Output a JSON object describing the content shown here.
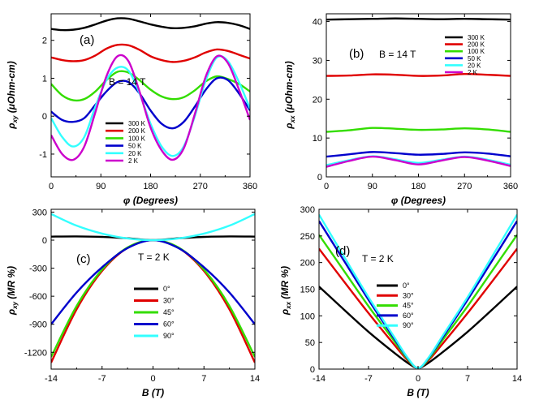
{
  "chart_data": [
    {
      "type": "line",
      "panel": "(a)",
      "field_label": "B = 14 T",
      "xlabel": "φ (Degrees)",
      "ylabel": "ρxy (μOhm-cm)",
      "xlim": [
        0,
        360
      ],
      "ylim": [
        -1.6,
        2.7
      ],
      "xticks": [
        0,
        90,
        180,
        270,
        360
      ],
      "yticks": [
        -1,
        0,
        1,
        2
      ],
      "legend_position": "lower-right",
      "series": [
        {
          "name": "300 K",
          "color": "#000000",
          "x": [
            0,
            20,
            40,
            60,
            80,
            100,
            120,
            140,
            160,
            180,
            200,
            220,
            240,
            260,
            280,
            300,
            320,
            340,
            360
          ],
          "values": [
            2.3,
            2.27,
            2.28,
            2.33,
            2.42,
            2.52,
            2.58,
            2.57,
            2.5,
            2.42,
            2.36,
            2.32,
            2.33,
            2.37,
            2.44,
            2.48,
            2.46,
            2.4,
            2.3
          ]
        },
        {
          "name": "200 K",
          "color": "#e00000",
          "x": [
            0,
            20,
            40,
            60,
            80,
            100,
            120,
            140,
            160,
            180,
            200,
            220,
            240,
            260,
            280,
            300,
            320,
            340,
            360
          ],
          "values": [
            1.55,
            1.48,
            1.45,
            1.48,
            1.6,
            1.78,
            1.88,
            1.87,
            1.75,
            1.58,
            1.48,
            1.43,
            1.46,
            1.55,
            1.68,
            1.76,
            1.72,
            1.62,
            1.52
          ]
        },
        {
          "name": "100 K",
          "color": "#33dd00",
          "x": [
            0,
            20,
            40,
            60,
            80,
            100,
            120,
            140,
            160,
            180,
            200,
            220,
            240,
            260,
            280,
            300,
            320,
            340,
            360
          ],
          "values": [
            0.85,
            0.55,
            0.42,
            0.45,
            0.65,
            0.95,
            1.17,
            1.15,
            0.95,
            0.7,
            0.52,
            0.45,
            0.5,
            0.68,
            0.92,
            1.05,
            0.98,
            0.85,
            0.65
          ]
        },
        {
          "name": "50 K",
          "color": "#0000cc",
          "x": [
            0,
            20,
            40,
            60,
            80,
            100,
            120,
            140,
            160,
            180,
            200,
            220,
            240,
            260,
            280,
            300,
            320,
            340,
            360
          ],
          "values": [
            0.12,
            -0.1,
            -0.15,
            -0.05,
            0.3,
            0.65,
            0.9,
            0.9,
            0.6,
            0.15,
            -0.2,
            -0.32,
            -0.15,
            0.25,
            0.7,
            1.0,
            0.95,
            0.6,
            0.15
          ]
        },
        {
          "name": "20 K",
          "color": "#33ffff",
          "x": [
            0,
            20,
            40,
            60,
            80,
            100,
            120,
            140,
            160,
            180,
            200,
            220,
            240,
            260,
            280,
            300,
            320,
            340,
            360
          ],
          "values": [
            -0.05,
            -0.55,
            -0.8,
            -0.55,
            0.25,
            0.95,
            1.28,
            1.2,
            0.6,
            -0.2,
            -0.8,
            -1.05,
            -0.8,
            0.0,
            0.95,
            1.55,
            1.45,
            0.9,
            0.2
          ]
        },
        {
          "name": "2 K",
          "color": "#cc00cc",
          "x": [
            0,
            20,
            40,
            60,
            80,
            100,
            120,
            140,
            160,
            180,
            200,
            220,
            240,
            260,
            280,
            300,
            320,
            340,
            360
          ],
          "values": [
            -0.5,
            -1.0,
            -1.15,
            -0.8,
            0.1,
            1.05,
            1.58,
            1.45,
            0.65,
            -0.3,
            -0.9,
            -1.15,
            -0.85,
            0.05,
            1.05,
            1.58,
            1.4,
            0.7,
            -0.1
          ]
        }
      ]
    },
    {
      "type": "line",
      "panel": "(b)",
      "field_label": "B = 14 T",
      "xlabel": "φ (Degrees)",
      "ylabel": "ρxx (μOhm-cm)",
      "xlim": [
        0,
        360
      ],
      "ylim": [
        0,
        42
      ],
      "xticks": [
        0,
        90,
        180,
        270,
        360
      ],
      "yticks": [
        0,
        10,
        20,
        30,
        40
      ],
      "legend_position": "top-right",
      "series": [
        {
          "name": "300 K",
          "color": "#000000",
          "x": [
            0,
            45,
            90,
            135,
            180,
            225,
            270,
            315,
            360
          ],
          "values": [
            40.5,
            40.6,
            40.7,
            40.8,
            40.7,
            40.6,
            40.7,
            40.6,
            40.5
          ]
        },
        {
          "name": "200 K",
          "color": "#e00000",
          "x": [
            0,
            45,
            90,
            135,
            180,
            225,
            270,
            315,
            360
          ],
          "values": [
            26.0,
            26.1,
            26.4,
            26.3,
            26.0,
            26.1,
            26.5,
            26.3,
            26.0
          ]
        },
        {
          "name": "100 K",
          "color": "#33dd00",
          "x": [
            0,
            45,
            90,
            135,
            180,
            225,
            270,
            315,
            360
          ],
          "values": [
            11.6,
            12.0,
            12.6,
            12.4,
            12.1,
            12.2,
            12.5,
            12.2,
            11.6
          ]
        },
        {
          "name": "50 K",
          "color": "#0000cc",
          "x": [
            0,
            45,
            90,
            135,
            180,
            225,
            270,
            315,
            360
          ],
          "values": [
            5.2,
            5.8,
            6.4,
            6.1,
            5.7,
            5.9,
            6.3,
            6.0,
            5.3
          ]
        },
        {
          "name": "20 K",
          "color": "#33ffff",
          "x": [
            0,
            45,
            90,
            135,
            180,
            225,
            270,
            315,
            360
          ],
          "values": [
            3.0,
            4.3,
            5.3,
            4.5,
            3.6,
            4.4,
            5.2,
            4.4,
            3.1
          ]
        },
        {
          "name": "2 K",
          "color": "#cc00cc",
          "x": [
            0,
            45,
            90,
            135,
            180,
            225,
            270,
            315,
            360
          ],
          "values": [
            2.6,
            4.1,
            5.2,
            4.3,
            3.2,
            4.2,
            5.1,
            4.2,
            2.8
          ]
        }
      ]
    },
    {
      "type": "line",
      "panel": "(c)",
      "field_label": "T = 2 K",
      "xlabel": "B (T)",
      "ylabel": "ρxy (MR %)",
      "xlim": [
        -14,
        14
      ],
      "ylim": [
        -1380,
        330
      ],
      "xticks": [
        -14,
        -7,
        0,
        7,
        14
      ],
      "yticks": [
        300,
        0,
        -300,
        -600,
        -900,
        -1200
      ],
      "legend_position": "center",
      "series": [
        {
          "name": "0°",
          "color": "#000000",
          "x": [
            -14,
            -10.5,
            -7,
            -3.5,
            0,
            3.5,
            7,
            10.5,
            14
          ],
          "values": [
            38,
            40,
            35,
            20,
            0,
            20,
            35,
            40,
            38
          ]
        },
        {
          "name": "30°",
          "color": "#e00000",
          "x": [
            -14,
            -10.5,
            -7,
            -3.5,
            0,
            3.5,
            7,
            10.5,
            14
          ],
          "values": [
            -1310,
            -740,
            -330,
            -82,
            0,
            -82,
            -330,
            -740,
            -1310
          ]
        },
        {
          "name": "45°",
          "color": "#33dd00",
          "x": [
            -14,
            -10.5,
            -7,
            -3.5,
            0,
            3.5,
            7,
            10.5,
            14
          ],
          "values": [
            -1250,
            -705,
            -315,
            -78,
            0,
            -78,
            -315,
            -705,
            -1250
          ]
        },
        {
          "name": "60°",
          "color": "#0000cc",
          "x": [
            -14,
            -10.5,
            -7,
            -3.5,
            0,
            3.5,
            7,
            10.5,
            14
          ],
          "values": [
            -900,
            -560,
            -290,
            -85,
            0,
            -85,
            -290,
            -560,
            -900
          ]
        },
        {
          "name": "90°",
          "color": "#33ffff",
          "x": [
            -14,
            -10.5,
            -7,
            -3.5,
            0,
            3.5,
            7,
            10.5,
            14
          ],
          "values": [
            280,
            155,
            70,
            18,
            0,
            18,
            70,
            155,
            280
          ]
        }
      ]
    },
    {
      "type": "line",
      "panel": "(d)",
      "field_label": "T = 2 K",
      "xlabel": "B (T)",
      "ylabel": "ρxx (MR %)",
      "xlim": [
        -14,
        14
      ],
      "ylim": [
        0,
        300
      ],
      "xticks": [
        -14,
        -7,
        0,
        7,
        14
      ],
      "yticks": [
        0,
        50,
        100,
        150,
        200,
        250,
        300
      ],
      "legend_position": "top-left",
      "series": [
        {
          "name": "0°",
          "color": "#000000",
          "x": [
            -14,
            -10.5,
            -7,
            -3.5,
            -1.5,
            0,
            1.5,
            3.5,
            7,
            10.5,
            14
          ],
          "values": [
            155,
            112,
            70,
            32,
            12,
            2,
            12,
            32,
            70,
            112,
            155
          ]
        },
        {
          "name": "30°",
          "color": "#e00000",
          "x": [
            -14,
            -10.5,
            -7,
            -3.5,
            -1.5,
            0,
            1.5,
            3.5,
            7,
            10.5,
            14
          ],
          "values": [
            226,
            165,
            105,
            48,
            17,
            2,
            17,
            48,
            105,
            165,
            226
          ]
        },
        {
          "name": "45°",
          "color": "#33dd00",
          "x": [
            -14,
            -10.5,
            -7,
            -3.5,
            -1.5,
            0,
            1.5,
            3.5,
            7,
            10.5,
            14
          ],
          "values": [
            252,
            185,
            118,
            55,
            19,
            2,
            19,
            55,
            118,
            185,
            252
          ]
        },
        {
          "name": "60°",
          "color": "#0000cc",
          "x": [
            -14,
            -10.5,
            -7,
            -3.5,
            -1.5,
            0,
            1.5,
            3.5,
            7,
            10.5,
            14
          ],
          "values": [
            278,
            204,
            130,
            60,
            21,
            2,
            21,
            60,
            130,
            204,
            278
          ]
        },
        {
          "name": "90°",
          "color": "#33ffff",
          "x": [
            -14,
            -10.5,
            -7,
            -3.5,
            -1.5,
            0,
            1.5,
            3.5,
            7,
            10.5,
            14
          ],
          "values": [
            290,
            212,
            135,
            63,
            22,
            2,
            22,
            63,
            135,
            212,
            290
          ]
        }
      ]
    }
  ]
}
